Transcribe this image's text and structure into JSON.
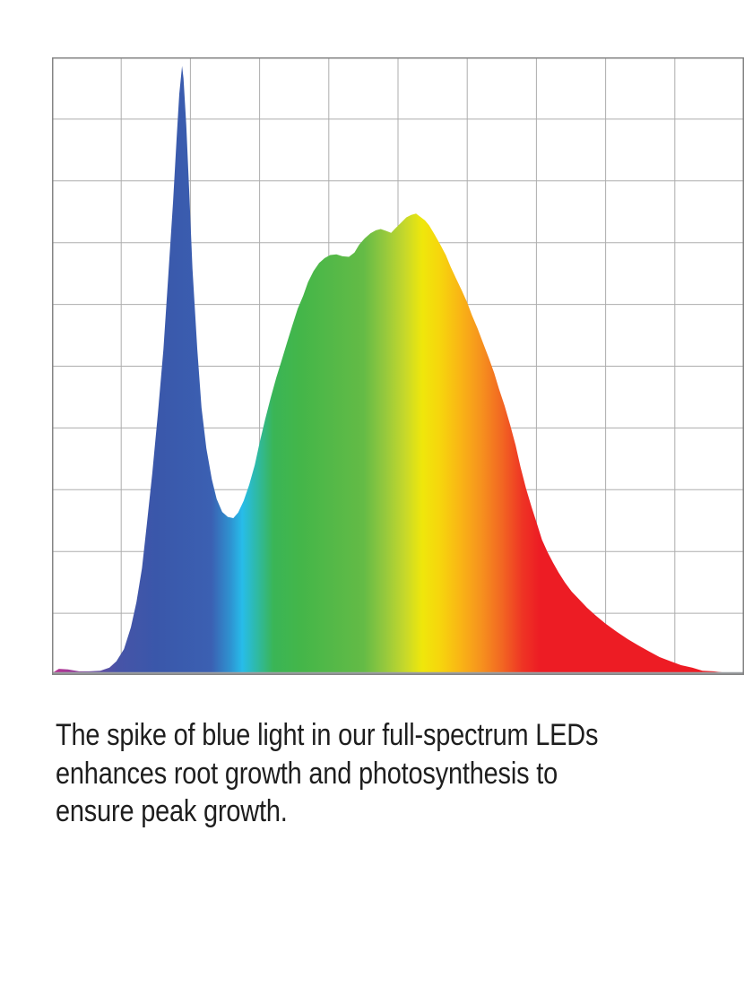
{
  "page": {
    "background": "#FFFFFF"
  },
  "chart_data": {
    "type": "area",
    "title": "",
    "xlabel": "",
    "ylabel": "",
    "axes": {
      "x_tick_labels": [],
      "y_tick_labels": [],
      "labels_visible": false
    },
    "grid": {
      "columns": 10,
      "rows": 10,
      "line_color": "#ADADAD",
      "border_color": "#848484",
      "baseline_color": "#9DA0A4"
    },
    "features": {
      "blue_spike_peak_x": 0.188,
      "blue_spike_peak_intensity": 0.986,
      "valley_x": 0.262,
      "valley_intensity": 0.254,
      "main_peak_x": 0.526,
      "main_peak_intensity": 0.747
    },
    "gradient_stops": [
      {
        "offset": 0.0,
        "color": "#BE2F92"
      },
      {
        "offset": 0.03,
        "color": "#9A3E99"
      },
      {
        "offset": 0.06,
        "color": "#6A4BA1"
      },
      {
        "offset": 0.095,
        "color": "#4754A7"
      },
      {
        "offset": 0.15,
        "color": "#3A57AA"
      },
      {
        "offset": 0.23,
        "color": "#3B60B2"
      },
      {
        "offset": 0.258,
        "color": "#2E93D1"
      },
      {
        "offset": 0.275,
        "color": "#27BCEA"
      },
      {
        "offset": 0.295,
        "color": "#2EBAA9"
      },
      {
        "offset": 0.32,
        "color": "#3AB556"
      },
      {
        "offset": 0.36,
        "color": "#44B649"
      },
      {
        "offset": 0.45,
        "color": "#64BB46"
      },
      {
        "offset": 0.48,
        "color": "#93C83E"
      },
      {
        "offset": 0.51,
        "color": "#C6D82B"
      },
      {
        "offset": 0.535,
        "color": "#EFE70B"
      },
      {
        "offset": 0.56,
        "color": "#F6D60D"
      },
      {
        "offset": 0.59,
        "color": "#F9B515"
      },
      {
        "offset": 0.62,
        "color": "#F6921E"
      },
      {
        "offset": 0.65,
        "color": "#F26722"
      },
      {
        "offset": 0.68,
        "color": "#EE3424"
      },
      {
        "offset": 0.705,
        "color": "#ED1C24"
      },
      {
        "offset": 1.0,
        "color": "#ED1C24"
      }
    ],
    "series": [
      {
        "name": "led-spectrum",
        "coords": "normalized x (0-1 across plot) and intensity (0 baseline - 1 top)",
        "points": [
          [
            0.0,
            0.003
          ],
          [
            0.01,
            0.01
          ],
          [
            0.023,
            0.009
          ],
          [
            0.039,
            0.006
          ],
          [
            0.054,
            0.006
          ],
          [
            0.07,
            0.007
          ],
          [
            0.083,
            0.012
          ],
          [
            0.093,
            0.022
          ],
          [
            0.104,
            0.042
          ],
          [
            0.114,
            0.077
          ],
          [
            0.122,
            0.118
          ],
          [
            0.13,
            0.173
          ],
          [
            0.137,
            0.244
          ],
          [
            0.145,
            0.327
          ],
          [
            0.153,
            0.423
          ],
          [
            0.161,
            0.527
          ],
          [
            0.168,
            0.646
          ],
          [
            0.175,
            0.767
          ],
          [
            0.18,
            0.868
          ],
          [
            0.184,
            0.941
          ],
          [
            0.188,
            0.986
          ],
          [
            0.19,
            0.966
          ],
          [
            0.194,
            0.89
          ],
          [
            0.198,
            0.789
          ],
          [
            0.203,
            0.658
          ],
          [
            0.21,
            0.527
          ],
          [
            0.216,
            0.433
          ],
          [
            0.223,
            0.367
          ],
          [
            0.231,
            0.317
          ],
          [
            0.238,
            0.285
          ],
          [
            0.246,
            0.264
          ],
          [
            0.254,
            0.256
          ],
          [
            0.262,
            0.254
          ],
          [
            0.269,
            0.263
          ],
          [
            0.277,
            0.282
          ],
          [
            0.285,
            0.308
          ],
          [
            0.293,
            0.34
          ],
          [
            0.3,
            0.376
          ],
          [
            0.308,
            0.414
          ],
          [
            0.316,
            0.449
          ],
          [
            0.324,
            0.481
          ],
          [
            0.332,
            0.51
          ],
          [
            0.339,
            0.536
          ],
          [
            0.347,
            0.565
          ],
          [
            0.355,
            0.593
          ],
          [
            0.363,
            0.614
          ],
          [
            0.37,
            0.636
          ],
          [
            0.378,
            0.654
          ],
          [
            0.386,
            0.667
          ],
          [
            0.394,
            0.675
          ],
          [
            0.402,
            0.68
          ],
          [
            0.411,
            0.681
          ],
          [
            0.42,
            0.678
          ],
          [
            0.429,
            0.677
          ],
          [
            0.437,
            0.684
          ],
          [
            0.444,
            0.697
          ],
          [
            0.452,
            0.707
          ],
          [
            0.46,
            0.715
          ],
          [
            0.468,
            0.72
          ],
          [
            0.475,
            0.722
          ],
          [
            0.483,
            0.719
          ],
          [
            0.49,
            0.716
          ],
          [
            0.496,
            0.723
          ],
          [
            0.504,
            0.732
          ],
          [
            0.512,
            0.741
          ],
          [
            0.519,
            0.745
          ],
          [
            0.526,
            0.747
          ],
          [
            0.532,
            0.742
          ],
          [
            0.539,
            0.736
          ],
          [
            0.545,
            0.728
          ],
          [
            0.553,
            0.713
          ],
          [
            0.561,
            0.697
          ],
          [
            0.569,
            0.68
          ],
          [
            0.576,
            0.661
          ],
          [
            0.584,
            0.642
          ],
          [
            0.592,
            0.623
          ],
          [
            0.6,
            0.603
          ],
          [
            0.607,
            0.582
          ],
          [
            0.615,
            0.561
          ],
          [
            0.623,
            0.537
          ],
          [
            0.631,
            0.514
          ],
          [
            0.639,
            0.489
          ],
          [
            0.646,
            0.463
          ],
          [
            0.654,
            0.436
          ],
          [
            0.662,
            0.405
          ],
          [
            0.67,
            0.372
          ],
          [
            0.677,
            0.337
          ],
          [
            0.685,
            0.302
          ],
          [
            0.693,
            0.272
          ],
          [
            0.701,
            0.244
          ],
          [
            0.708,
            0.219
          ],
          [
            0.716,
            0.199
          ],
          [
            0.724,
            0.182
          ],
          [
            0.732,
            0.166
          ],
          [
            0.741,
            0.15
          ],
          [
            0.751,
            0.135
          ],
          [
            0.762,
            0.122
          ],
          [
            0.773,
            0.109
          ],
          [
            0.786,
            0.096
          ],
          [
            0.8,
            0.083
          ],
          [
            0.816,
            0.07
          ],
          [
            0.832,
            0.058
          ],
          [
            0.847,
            0.048
          ],
          [
            0.863,
            0.038
          ],
          [
            0.878,
            0.029
          ],
          [
            0.894,
            0.022
          ],
          [
            0.909,
            0.016
          ],
          [
            0.925,
            0.012
          ],
          [
            0.94,
            0.007
          ],
          [
            0.956,
            0.006
          ],
          [
            0.971,
            0.004
          ],
          [
            0.987,
            0.003
          ],
          [
            1.0,
            0.001
          ]
        ]
      }
    ]
  },
  "caption": {
    "color": "#1E1E1E",
    "lines": [
      "The spike of blue light in our full-spectrum LEDs",
      "enhances root growth and photosynthesis to",
      "ensure peak growth."
    ]
  }
}
